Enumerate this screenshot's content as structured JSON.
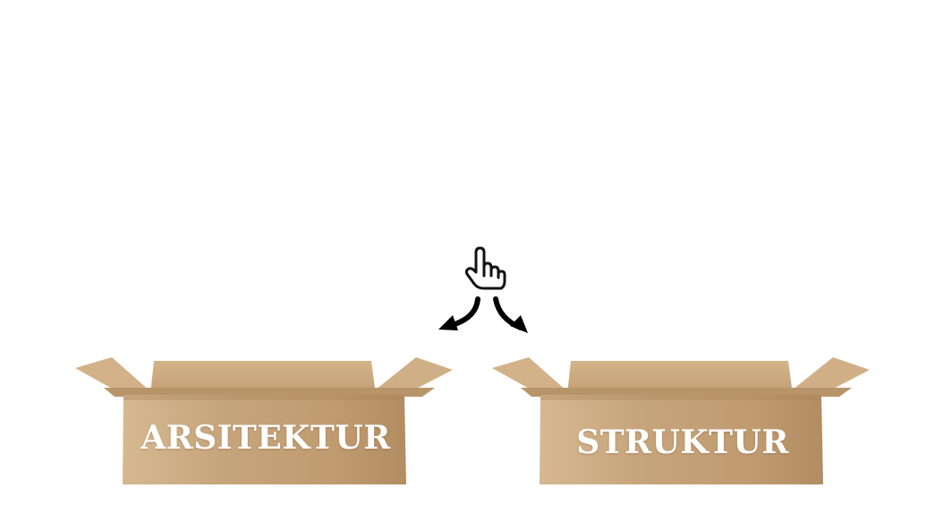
{
  "boxes": [
    {
      "label": "ARSITEKTUR"
    },
    {
      "label": "STRUKTUR"
    }
  ],
  "hint": {
    "icon": "pointing-hand-icon",
    "arrows": [
      "arrow-down-left-icon",
      "arrow-down-right-icon"
    ]
  },
  "colors": {
    "box_front": "#c6a47c",
    "box_flap": "#d2b086",
    "box_back": "#c9a67c",
    "label": "#ffffff",
    "background": "#ffffff"
  }
}
